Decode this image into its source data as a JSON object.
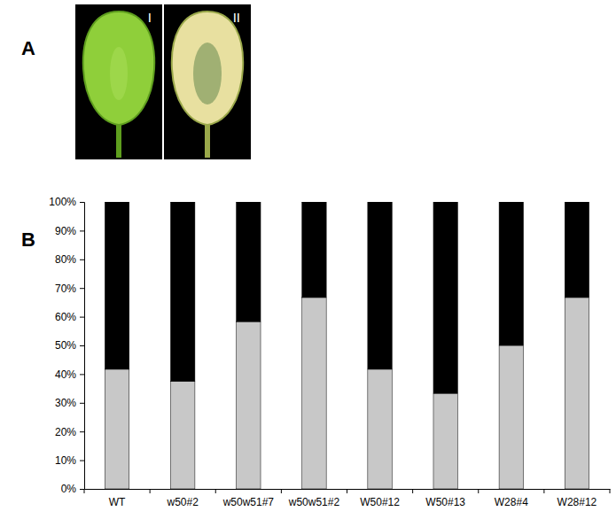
{
  "chart_data": {
    "type": "bar",
    "stacked": true,
    "grid": false,
    "categories": [
      "WT",
      "w50#2",
      "w50w51#7",
      "w50w51#2",
      "W50#12",
      "W50#13",
      "W28#4",
      "W28#12"
    ],
    "series": [
      {
        "color": "#c8c8c8",
        "values": [
          41.7,
          37.5,
          58.3,
          66.7,
          41.7,
          33.3,
          50,
          66.7
        ]
      },
      {
        "color": "#000000",
        "values": [
          58.3,
          62.5,
          41.7,
          33.3,
          58.3,
          66.7,
          50,
          33.3
        ]
      }
    ],
    "ylim": [
      0,
      100
    ],
    "yticks": [
      {
        "value": 0,
        "label": "0%"
      },
      {
        "value": 10,
        "label": "10%"
      },
      {
        "value": 20,
        "label": "20%"
      },
      {
        "value": 30,
        "label": "30%"
      },
      {
        "value": 40,
        "label": "40%"
      },
      {
        "value": 50,
        "label": "50%"
      },
      {
        "value": 60,
        "label": "60%"
      },
      {
        "value": 70,
        "label": "70%"
      },
      {
        "value": 80,
        "label": "80%"
      },
      {
        "value": 90,
        "label": "90%"
      },
      {
        "value": 100,
        "label": "100%"
      }
    ]
  },
  "figure": {
    "panel_labels": [
      "A",
      "B"
    ],
    "leaf_labels": [
      "I",
      "II"
    ]
  }
}
